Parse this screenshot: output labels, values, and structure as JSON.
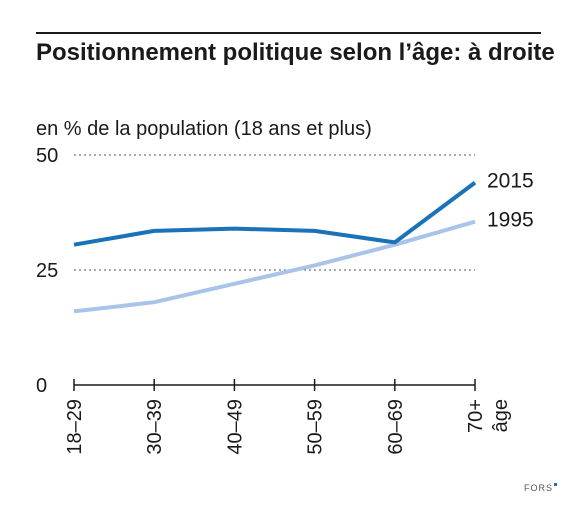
{
  "chart_data": {
    "type": "line",
    "title": "Positionnement politique selon l’âge: à droite",
    "subtitle": "en % de la population (18 ans et plus)",
    "xlabel": "âge",
    "ylabel": "",
    "categories": [
      "18–29",
      "30–39",
      "40–49",
      "50–59",
      "60–69",
      "70+"
    ],
    "ylim": [
      0,
      50
    ],
    "yticks": [
      0,
      25,
      50
    ],
    "grid": "dashed horizontal at 25 and 50",
    "series": [
      {
        "name": "2015",
        "color": "#1a72b8",
        "values": [
          30.5,
          33.5,
          34.0,
          33.5,
          31.0,
          44.0
        ]
      },
      {
        "name": "1995",
        "color": "#a9c4e8",
        "values": [
          16.0,
          18.0,
          22.0,
          26.0,
          30.5,
          35.5
        ]
      }
    ],
    "legend": "direct labels at right end of lines"
  },
  "source": {
    "label": "FORS"
  }
}
